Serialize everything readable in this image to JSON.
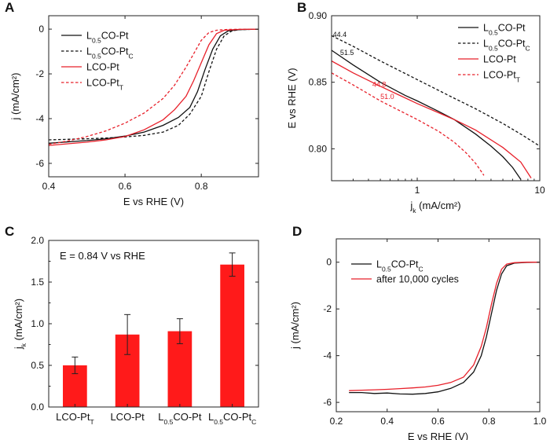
{
  "colors": {
    "black": "#111111",
    "red": "#e8202a"
  },
  "chart_data": [
    {
      "panel": "A",
      "type": "line",
      "title": "",
      "xlabel": "E vs RHE (V)",
      "ylabel": "j (mA/cm²)",
      "xlim": [
        0.4,
        0.95
      ],
      "ylim": [
        -6.6,
        0.6
      ],
      "xticks": [
        0.4,
        0.6,
        0.8
      ],
      "yticks": [
        0,
        -2,
        -4,
        -6
      ],
      "legend_position": "top-left",
      "series": [
        {
          "name": "L0.5CO-Pt",
          "label_main": "L",
          "label_sub": "0.5",
          "label_rest": "CO-Pt",
          "label_sub2": "",
          "color": "#111111",
          "dash": false,
          "points": [
            [
              0.4,
              -5.1
            ],
            [
              0.5,
              -4.98
            ],
            [
              0.55,
              -4.9
            ],
            [
              0.6,
              -4.78
            ],
            [
              0.65,
              -4.6
            ],
            [
              0.7,
              -4.3
            ],
            [
              0.74,
              -3.95
            ],
            [
              0.77,
              -3.5
            ],
            [
              0.79,
              -2.8
            ],
            [
              0.81,
              -1.8
            ],
            [
              0.83,
              -0.9
            ],
            [
              0.85,
              -0.3
            ],
            [
              0.87,
              -0.08
            ],
            [
              0.9,
              -0.02
            ],
            [
              0.95,
              0
            ]
          ]
        },
        {
          "name": "L0.5CO-PtC",
          "label_main": "L",
          "label_sub": "0.5",
          "label_rest": "CO-Pt",
          "label_sub2": "C",
          "color": "#111111",
          "dash": true,
          "points": [
            [
              0.4,
              -4.95
            ],
            [
              0.5,
              -4.9
            ],
            [
              0.55,
              -4.87
            ],
            [
              0.6,
              -4.82
            ],
            [
              0.65,
              -4.75
            ],
            [
              0.7,
              -4.6
            ],
            [
              0.74,
              -4.3
            ],
            [
              0.77,
              -3.8
            ],
            [
              0.8,
              -3.0
            ],
            [
              0.82,
              -1.9
            ],
            [
              0.84,
              -0.9
            ],
            [
              0.86,
              -0.3
            ],
            [
              0.88,
              -0.08
            ],
            [
              0.9,
              -0.02
            ],
            [
              0.95,
              0
            ]
          ]
        },
        {
          "name": "LCO-Pt",
          "label_main": "LCO-Pt",
          "label_sub": "",
          "label_rest": "",
          "label_sub2": "",
          "color": "#e8202a",
          "dash": false,
          "points": [
            [
              0.4,
              -5.2
            ],
            [
              0.5,
              -5.05
            ],
            [
              0.55,
              -4.95
            ],
            [
              0.6,
              -4.8
            ],
            [
              0.65,
              -4.5
            ],
            [
              0.7,
              -4.05
            ],
            [
              0.73,
              -3.6
            ],
            [
              0.76,
              -3.0
            ],
            [
              0.78,
              -2.3
            ],
            [
              0.8,
              -1.5
            ],
            [
              0.82,
              -0.7
            ],
            [
              0.84,
              -0.2
            ],
            [
              0.86,
              -0.05
            ],
            [
              0.9,
              -0.01
            ],
            [
              0.95,
              0
            ]
          ]
        },
        {
          "name": "LCO-PtT",
          "label_main": "LCO-Pt",
          "label_sub": "",
          "label_rest": "",
          "label_sub2": "T",
          "color": "#e8202a",
          "dash": true,
          "points": [
            [
              0.4,
              -5.15
            ],
            [
              0.45,
              -5.0
            ],
            [
              0.5,
              -4.8
            ],
            [
              0.55,
              -4.55
            ],
            [
              0.6,
              -4.2
            ],
            [
              0.65,
              -3.75
            ],
            [
              0.7,
              -3.1
            ],
            [
              0.73,
              -2.5
            ],
            [
              0.76,
              -1.7
            ],
            [
              0.78,
              -1.1
            ],
            [
              0.8,
              -0.5
            ],
            [
              0.82,
              -0.15
            ],
            [
              0.84,
              -0.05
            ],
            [
              0.87,
              -0.01
            ],
            [
              0.95,
              0
            ]
          ]
        }
      ]
    },
    {
      "panel": "B",
      "type": "line",
      "title": "",
      "xlabel": "jk (mA/cm²)",
      "xlabel_main": "j",
      "xlabel_sub": "k",
      "xlabel_rest": " (mA/cm²)",
      "ylabel": "E vs RHE (V)",
      "xscale": "log",
      "xlim": [
        0.2,
        10
      ],
      "ylim": [
        0.776,
        0.9
      ],
      "xticks": [
        1,
        10
      ],
      "yticks": [
        0.8,
        0.85,
        0.9
      ],
      "ytick_labels": [
        "0.80",
        "0.85",
        "0.90"
      ],
      "legend_position": "top-right",
      "annotations": [
        {
          "text": "44.4",
          "color": "#111111",
          "at": [
            0.205,
            0.884
          ]
        },
        {
          "text": "51.5",
          "color": "#111111",
          "at": [
            0.235,
            0.8705
          ]
        },
        {
          "text": "44.8",
          "color": "#e8202a",
          "at": [
            0.43,
            0.8465
          ]
        },
        {
          "text": "51.0",
          "color": "#e8202a",
          "at": [
            0.5,
            0.8375
          ]
        }
      ],
      "series": [
        {
          "name": "L0.5CO-Pt",
          "label_main": "L",
          "label_sub": "0.5",
          "label_rest": "CO-Pt",
          "label_sub2": "",
          "color": "#111111",
          "dash": false,
          "points": [
            [
              0.2,
              0.874
            ],
            [
              0.3,
              0.863
            ],
            [
              0.5,
              0.85
            ],
            [
              0.8,
              0.84
            ],
            [
              1,
              0.836
            ],
            [
              1.5,
              0.828
            ],
            [
              2,
              0.822
            ],
            [
              3,
              0.811
            ],
            [
              4,
              0.802
            ],
            [
              5,
              0.794
            ],
            [
              6,
              0.786
            ],
            [
              7,
              0.777
            ]
          ]
        },
        {
          "name": "L0.5CO-PtC",
          "label_main": "L",
          "label_sub": "0.5",
          "label_rest": "CO-Pt",
          "label_sub2": "C",
          "color": "#111111",
          "dash": true,
          "points": [
            [
              0.2,
              0.885
            ],
            [
              0.3,
              0.877
            ],
            [
              0.5,
              0.866
            ],
            [
              1,
              0.852
            ],
            [
              2,
              0.838
            ],
            [
              3,
              0.83
            ],
            [
              5,
              0.819
            ],
            [
              7,
              0.811
            ],
            [
              10,
              0.802
            ]
          ]
        },
        {
          "name": "LCO-Pt",
          "label_main": "LCO-Pt",
          "label_sub": "",
          "label_rest": "",
          "label_sub2": "",
          "color": "#e8202a",
          "dash": false,
          "points": [
            [
              0.2,
              0.866
            ],
            [
              0.3,
              0.857
            ],
            [
              0.5,
              0.847
            ],
            [
              1,
              0.834
            ],
            [
              1.5,
              0.827
            ],
            [
              2,
              0.822
            ],
            [
              3,
              0.814
            ],
            [
              5,
              0.801
            ],
            [
              7,
              0.79
            ],
            [
              8.5,
              0.778
            ]
          ]
        },
        {
          "name": "LCO-PtT",
          "label_main": "LCO-Pt",
          "label_sub": "",
          "label_rest": "",
          "label_sub2": "T",
          "color": "#e8202a",
          "dash": true,
          "points": [
            [
              0.2,
              0.857
            ],
            [
              0.3,
              0.848
            ],
            [
              0.5,
              0.836
            ],
            [
              1,
              0.822
            ],
            [
              1.5,
              0.813
            ],
            [
              2,
              0.805
            ],
            [
              2.5,
              0.797
            ],
            [
              3,
              0.789
            ],
            [
              3.5,
              0.78
            ]
          ]
        }
      ]
    },
    {
      "panel": "C",
      "type": "bar",
      "title": "",
      "annotation": "E = 0.84 V vs RHE",
      "xlabel": "",
      "ylabel": "jk (mA/cm²)",
      "ylabel_main": "j",
      "ylabel_sub": "k",
      "ylabel_rest": " (mA/cm²)",
      "ylim": [
        0,
        2.0
      ],
      "yticks": [
        0,
        0.5,
        1.0,
        1.5,
        2.0
      ],
      "ytick_labels": [
        "0.0",
        "0.5",
        "1.0",
        "1.5",
        "2.0"
      ],
      "bar_color": "#ff1a1a",
      "categories": [
        "LCO-PtT",
        "LCO-Pt",
        "L0.5CO-Pt",
        "L0.5CO-PtC"
      ],
      "category_parts": [
        {
          "main": "LCO-Pt",
          "sub": "",
          "rest": "",
          "sub2": "T"
        },
        {
          "main": "LCO-Pt",
          "sub": "",
          "rest": "",
          "sub2": ""
        },
        {
          "main": "L",
          "sub": "0.5",
          "rest": "CO-Pt",
          "sub2": ""
        },
        {
          "main": "L",
          "sub": "0.5",
          "rest": "CO-Pt",
          "sub2": "C"
        }
      ],
      "values": [
        0.5,
        0.87,
        0.91,
        1.71
      ],
      "errors": [
        0.1,
        0.24,
        0.15,
        0.14
      ]
    },
    {
      "panel": "D",
      "type": "line",
      "title": "",
      "xlabel": "E vs RHE (V)",
      "ylabel": "j (mA/cm²)",
      "xlim": [
        0.2,
        1.0
      ],
      "ylim": [
        -6.4,
        1.0
      ],
      "xticks": [
        0.2,
        0.4,
        0.6,
        0.8,
        1.0
      ],
      "xtick_labels": [
        "0.2",
        "0.4",
        "0.6",
        "0.8",
        "1.0"
      ],
      "yticks": [
        0,
        -2,
        -4,
        -6
      ],
      "legend_position": "top-left",
      "series": [
        {
          "name": "L0.5CO-PtC",
          "label_main": "L",
          "label_sub": "0.5",
          "label_rest": "CO-Pt",
          "label_sub2": "C",
          "color": "#111111",
          "dash": false,
          "points": [
            [
              0.25,
              -5.58
            ],
            [
              0.3,
              -5.58
            ],
            [
              0.35,
              -5.62
            ],
            [
              0.4,
              -5.6
            ],
            [
              0.45,
              -5.64
            ],
            [
              0.5,
              -5.65
            ],
            [
              0.55,
              -5.62
            ],
            [
              0.6,
              -5.55
            ],
            [
              0.65,
              -5.4
            ],
            [
              0.7,
              -5.15
            ],
            [
              0.74,
              -4.7
            ],
            [
              0.77,
              -4.0
            ],
            [
              0.79,
              -3.2
            ],
            [
              0.81,
              -2.2
            ],
            [
              0.83,
              -1.2
            ],
            [
              0.85,
              -0.5
            ],
            [
              0.87,
              -0.15
            ],
            [
              0.9,
              -0.04
            ],
            [
              0.95,
              -0.01
            ],
            [
              1.0,
              0
            ]
          ]
        },
        {
          "name": "after 10,000 cycles",
          "label_main": "after 10,000 cycles",
          "label_sub": "",
          "label_rest": "",
          "label_sub2": "",
          "color": "#e8202a",
          "dash": false,
          "points": [
            [
              0.25,
              -5.5
            ],
            [
              0.3,
              -5.48
            ],
            [
              0.35,
              -5.46
            ],
            [
              0.4,
              -5.44
            ],
            [
              0.45,
              -5.41
            ],
            [
              0.5,
              -5.38
            ],
            [
              0.55,
              -5.34
            ],
            [
              0.6,
              -5.27
            ],
            [
              0.65,
              -5.15
            ],
            [
              0.7,
              -4.92
            ],
            [
              0.74,
              -4.4
            ],
            [
              0.77,
              -3.6
            ],
            [
              0.79,
              -2.8
            ],
            [
              0.81,
              -1.8
            ],
            [
              0.83,
              -0.9
            ],
            [
              0.85,
              -0.3
            ],
            [
              0.87,
              -0.08
            ],
            [
              0.9,
              -0.02
            ],
            [
              0.95,
              0
            ],
            [
              1.0,
              0
            ]
          ]
        }
      ]
    }
  ]
}
